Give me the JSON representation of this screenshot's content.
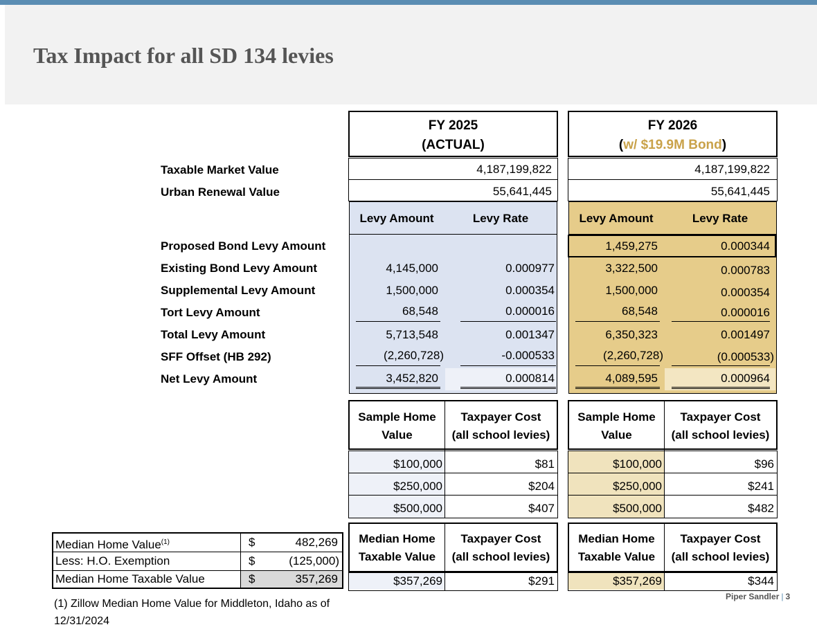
{
  "title": "Tax Impact for all SD 134 levies",
  "labels": {
    "taxable_market_value": "Taxable Market Value",
    "urban_renewal_value": "Urban Renewal Value",
    "proposed_bond": "Proposed Bond Levy Amount",
    "existing_bond": "Existing Bond Levy Amount",
    "supplemental": "Supplemental Levy Amount",
    "tort": "Tort Levy Amount",
    "total": "Total Levy Amount",
    "sff": "SFF Offset (HB 292)",
    "net": "Net Levy Amount"
  },
  "fy2025": {
    "header_line1": "FY 2025",
    "header_line2": "(ACTUAL)",
    "taxable_market_value": "4,187,199,822",
    "urban_renewal_value": "55,641,445",
    "col_levy_amount": "Levy Amount",
    "col_levy_rate": "Levy Rate",
    "existing_amount": "4,145,000",
    "existing_rate": "0.000977",
    "supplemental_amount": "1,500,000",
    "supplemental_rate": "0.000354",
    "tort_amount": "68,548",
    "tort_rate": "0.000016",
    "total_amount": "5,713,548",
    "total_rate": "0.001347",
    "sff_amount": "(2,260,728)",
    "sff_rate": "-0.000533",
    "net_amount": "3,452,820",
    "net_rate": "0.000814",
    "sample_head_1a": "Sample Home",
    "sample_head_1b": "Value",
    "sample_head_2a": "Taxpayer Cost",
    "sample_head_2b": "(all school levies)",
    "samples": [
      {
        "value": "$100,000",
        "cost": "$81"
      },
      {
        "value": "$250,000",
        "cost": "$204"
      },
      {
        "value": "$500,000",
        "cost": "$407"
      }
    ],
    "median_head_1a": "Median Home",
    "median_head_1b": "Taxable Value",
    "median_head_2a": "Taxpayer Cost",
    "median_head_2b": "(all school levies)",
    "median_value": "$357,269",
    "median_cost": "$291"
  },
  "fy2026": {
    "header_line1": "FY 2026",
    "header_open": "(",
    "header_bond": "w/ $19.9M Bond",
    "header_close": ")",
    "taxable_market_value": "4,187,199,822",
    "urban_renewal_value": "55,641,445",
    "col_levy_amount": "Levy Amount",
    "col_levy_rate": "Levy Rate",
    "proposed_amount": "1,459,275",
    "proposed_rate": "0.000344",
    "existing_amount": "3,322,500",
    "existing_rate": "0.000783",
    "supplemental_amount": "1,500,000",
    "supplemental_rate": "0.000354",
    "tort_amount": "68,548",
    "tort_rate": "0.000016",
    "total_amount": "6,350,323",
    "total_rate": "0.001497",
    "sff_amount": "(2,260,728)",
    "sff_rate": "(0.000533)",
    "net_amount": "4,089,595",
    "net_rate": "0.000964",
    "sample_head_1a": "Sample Home",
    "sample_head_1b": "Value",
    "sample_head_2a": "Taxpayer Cost",
    "sample_head_2b": "(all school levies)",
    "samples": [
      {
        "value": "$100,000",
        "cost": "$96"
      },
      {
        "value": "$250,000",
        "cost": "$241"
      },
      {
        "value": "$500,000",
        "cost": "$482"
      }
    ],
    "median_head_1a": "Median Home",
    "median_head_1b": "Taxable Value",
    "median_head_2a": "Taxpayer Cost",
    "median_head_2b": "(all school levies)",
    "median_value": "$357,269",
    "median_cost": "$344"
  },
  "median_table": {
    "row1_label": "Median Home Value",
    "row1_sup": "(1)",
    "row1_cur": "$",
    "row1_val": "482,269",
    "row2_label": "Less:  H.O. Exemption",
    "row2_cur": "$",
    "row2_val": "(125,000)",
    "row3_label": "Median Home Taxable Value",
    "row3_cur": "$",
    "row3_val": "357,269"
  },
  "footnote": "(1) Zillow Median Home Value for Middleton, Idaho as of 12/31/2024",
  "brand": {
    "name": "Piper Sandler",
    "sep": "|",
    "page": "3"
  },
  "colors": {
    "accent_bar": "#5b8db3",
    "fy2025_fill": "#dce3f1",
    "fy2026_fill": "#e6cc8a",
    "bond_text": "#c9a24a"
  }
}
